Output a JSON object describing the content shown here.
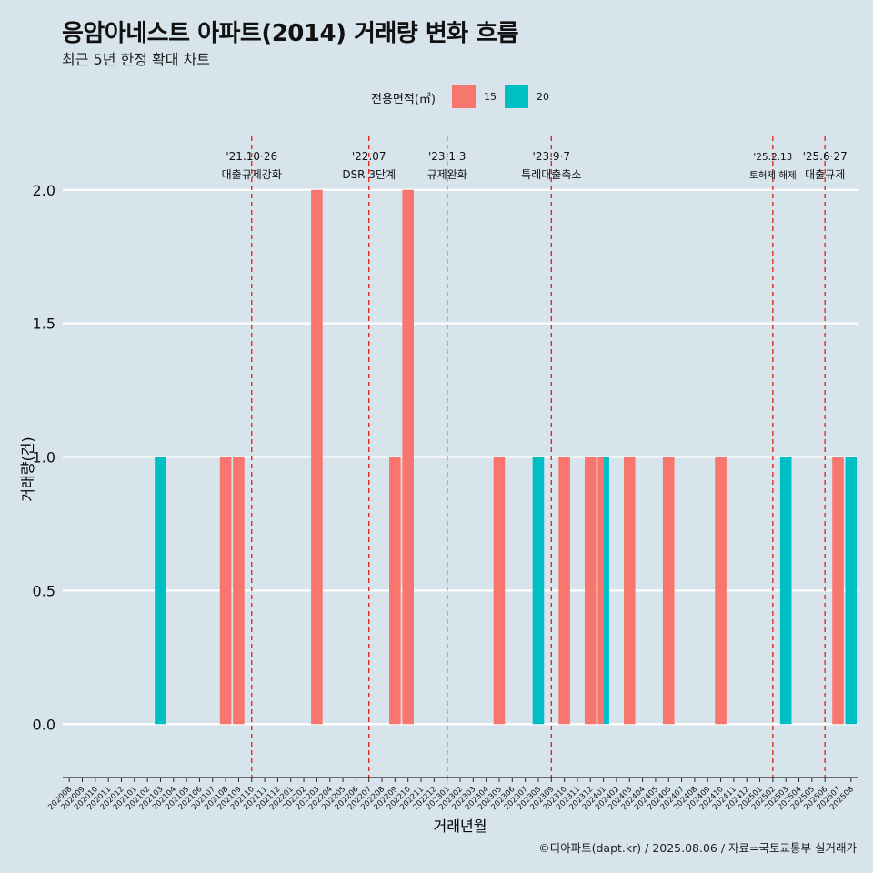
{
  "header": {
    "title": "응암아네스트 아파트(2014) 거래량 변화 흐름",
    "subtitle": "최근 5년 한정 확대 차트"
  },
  "legend": {
    "title": "전용면적(㎡)",
    "items": [
      {
        "label": "15",
        "color": "#F8766D"
      },
      {
        "label": "20",
        "color": "#00BFC4"
      }
    ]
  },
  "caption": "©디아파트(dapt.kr) / 2025.08.06 / 자료=국토교통부 실거래가",
  "chart_data": {
    "type": "bar",
    "xlabel": "거래년월",
    "ylabel": "거래량(건)",
    "ylim": [
      -0.2,
      2.2
    ],
    "yticks": [
      "0.0",
      "0.5",
      "1.0",
      "1.5",
      "2.0"
    ],
    "grid": "horizontal major lines only",
    "legend_position": "top",
    "categories": [
      "202008",
      "202009",
      "202010",
      "202011",
      "202012",
      "202101",
      "202102",
      "202103",
      "202104",
      "202105",
      "202106",
      "202107",
      "202108",
      "202109",
      "202110",
      "202111",
      "202112",
      "202201",
      "202202",
      "202203",
      "202204",
      "202205",
      "202206",
      "202207",
      "202208",
      "202209",
      "202210",
      "202211",
      "202212",
      "202301",
      "202302",
      "202303",
      "202304",
      "202305",
      "202306",
      "202307",
      "202308",
      "202309",
      "202310",
      "202311",
      "202312",
      "202401",
      "202402",
      "202403",
      "202404",
      "202405",
      "202406",
      "202407",
      "202408",
      "202409",
      "202410",
      "202411",
      "202412",
      "202501",
      "202502",
      "202503",
      "202504",
      "202505",
      "202506",
      "202507",
      "202508"
    ],
    "bars": [
      {
        "month": "202103",
        "area": "20",
        "value": 1
      },
      {
        "month": "202108",
        "area": "15",
        "value": 1
      },
      {
        "month": "202109",
        "area": "15",
        "value": 1
      },
      {
        "month": "202203",
        "area": "15",
        "value": 2
      },
      {
        "month": "202209",
        "area": "15",
        "value": 1
      },
      {
        "month": "202210",
        "area": "15",
        "value": 2
      },
      {
        "month": "202305",
        "area": "15",
        "value": 1
      },
      {
        "month": "202308",
        "area": "20",
        "value": 1
      },
      {
        "month": "202310",
        "area": "15",
        "value": 1
      },
      {
        "month": "202312",
        "area": "15",
        "value": 1
      },
      {
        "month": "202401",
        "area": "15",
        "value": 1
      },
      {
        "month": "202401",
        "area": "20",
        "value": 1
      },
      {
        "month": "202403",
        "area": "15",
        "value": 1
      },
      {
        "month": "202406",
        "area": "15",
        "value": 1
      },
      {
        "month": "202410",
        "area": "15",
        "value": 1
      },
      {
        "month": "202503",
        "area": "20",
        "value": 1
      },
      {
        "month": "202507",
        "area": "15",
        "value": 1
      },
      {
        "month": "202508",
        "area": "20",
        "value": 1
      }
    ],
    "events": [
      {
        "month": "202110",
        "date": "'21.10·26",
        "label": "대출규제강화"
      },
      {
        "month": "202207",
        "date": "'22.07",
        "label": "DSR 3단계"
      },
      {
        "month": "202301",
        "date": "'23.1·3",
        "label": "규제완화"
      },
      {
        "month": "202309",
        "date": "'23.9·7",
        "label": "특례대출축소"
      },
      {
        "month": "202502",
        "date": "'25.2.13",
        "label": "토허제 해제"
      },
      {
        "month": "202506",
        "date": "'25.6·27",
        "label": "대출규제"
      }
    ]
  }
}
